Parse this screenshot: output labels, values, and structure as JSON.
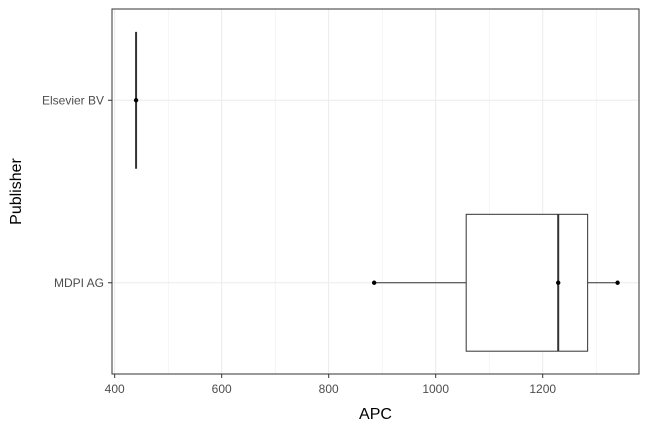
{
  "chart_data": {
    "type": "boxplot",
    "orientation": "horizontal",
    "xlabel": "APC",
    "ylabel": "Publisher",
    "xlim": [
      395,
      1380
    ],
    "x_ticks": [
      400,
      600,
      800,
      1000,
      1200
    ],
    "x_tick_labels": [
      "400",
      "600",
      "800",
      "1000",
      "1200"
    ],
    "grid": true,
    "categories": [
      "Elsevier BV",
      "MDPI AG"
    ],
    "boxes": [
      {
        "category": "Elsevier BV",
        "whisker_low": 440,
        "q1": 440,
        "median": 440,
        "q3": 440,
        "whisker_high": 440,
        "points": [
          440
        ]
      },
      {
        "category": "MDPI AG",
        "whisker_low": 885,
        "q1": 1057,
        "median": 1229,
        "q3": 1284,
        "whisker_high": 1340,
        "points": [
          885,
          1229,
          1340
        ]
      }
    ],
    "colors": {
      "box_fill": "#ffffff",
      "stroke": "#333333",
      "point": "#000000",
      "grid": "#ebebeb",
      "panel_border": "#333333"
    }
  }
}
